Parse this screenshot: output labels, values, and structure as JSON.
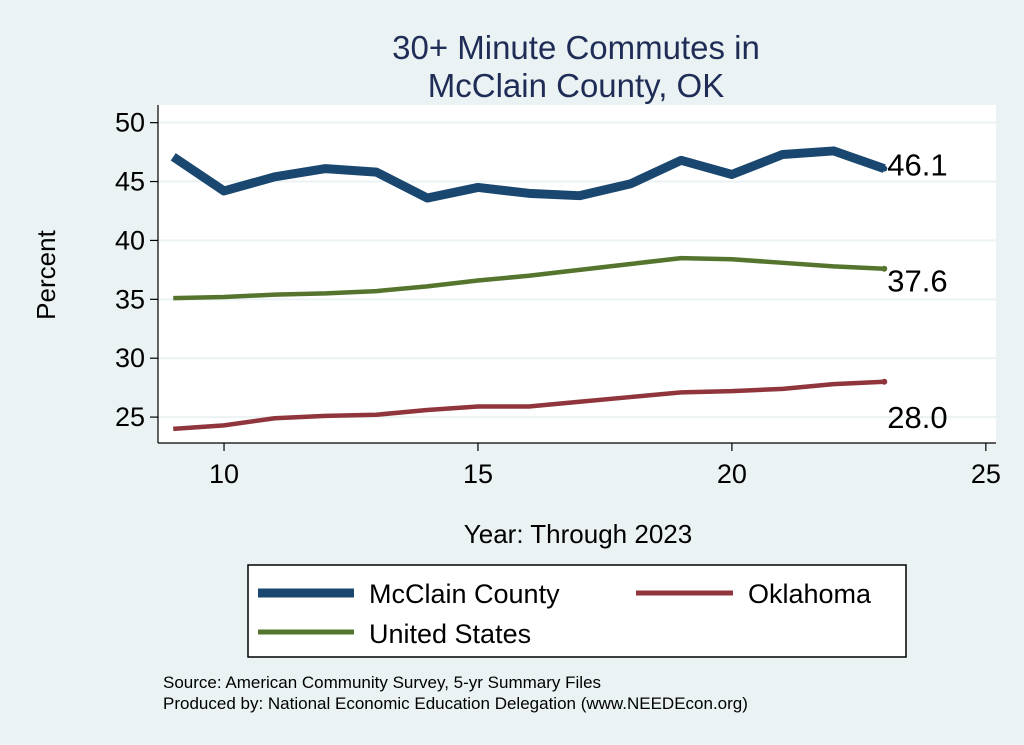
{
  "chart_data": {
    "type": "line",
    "title_lines": [
      "30+ Minute Commutes in",
      "McClain County, OK"
    ],
    "xlabel": "Year: Through 2023",
    "ylabel": "Percent",
    "xlim": [
      8.7,
      25.2
    ],
    "ylim": [
      22.8,
      51.5
    ],
    "xticks": [
      10,
      15,
      20,
      25
    ],
    "yticks": [
      25,
      30,
      35,
      40,
      45,
      50
    ],
    "x": [
      9,
      10,
      11,
      12,
      13,
      14,
      15,
      16,
      17,
      18,
      19,
      20,
      21,
      22,
      23
    ],
    "series": [
      {
        "name": "McClain County",
        "color": "#1a476f",
        "values": [
          47.1,
          44.2,
          45.4,
          46.1,
          45.8,
          43.6,
          44.5,
          44.0,
          43.8,
          44.8,
          46.8,
          45.6,
          47.3,
          47.6,
          46.1
        ],
        "end_label": "46.1"
      },
      {
        "name": "United States",
        "color": "#55752f",
        "values": [
          35.1,
          35.2,
          35.4,
          35.5,
          35.7,
          36.1,
          36.6,
          37.0,
          37.5,
          38.0,
          38.5,
          38.4,
          38.1,
          37.8,
          37.6
        ],
        "end_label": "37.6"
      },
      {
        "name": "Oklahoma",
        "color": "#90353b",
        "values": [
          24.0,
          24.3,
          24.9,
          25.1,
          25.2,
          25.6,
          25.9,
          25.9,
          26.3,
          26.7,
          27.1,
          27.2,
          27.4,
          27.8,
          28.0
        ],
        "end_label": "28.0"
      }
    ],
    "legend": {
      "position": "bottom",
      "entries": [
        "McClain County",
        "Oklahoma",
        "United States"
      ]
    },
    "source_lines": [
      "Source: American Community Survey, 5-yr Summary Files",
      "Produced by: National Economic Education Delegation (www.NEEDEcon.org)"
    ],
    "grid": true
  }
}
